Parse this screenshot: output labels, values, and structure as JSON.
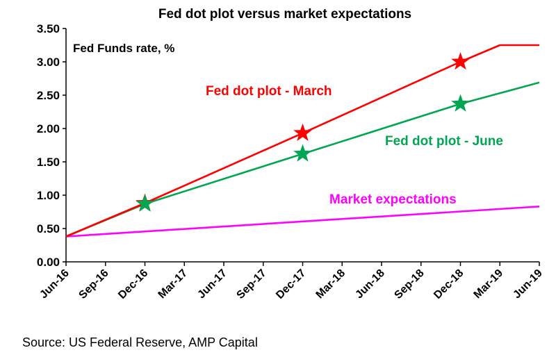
{
  "chart_data": {
    "type": "line",
    "title": "Fed dot plot versus market expectations",
    "ylabel": "Fed Funds rate, %",
    "ylim": [
      0,
      3.5
    ],
    "yticks": [
      0,
      0.5,
      1.0,
      1.5,
      2.0,
      2.5,
      3.0,
      3.5
    ],
    "ytick_labels": [
      "0.00",
      "0.50",
      "1.00",
      "1.50",
      "2.00",
      "2.50",
      "3.00",
      "3.50"
    ],
    "xticks": [
      "Jun-16",
      "Sep-16",
      "Dec-16",
      "Mar-17",
      "Jun-17",
      "Sep-17",
      "Dec-17",
      "Mar-18",
      "Jun-18",
      "Sep-18",
      "Dec-18",
      "Mar-19",
      "Jun-19"
    ],
    "grid": false,
    "series": [
      {
        "name": "Fed dot plot - March",
        "color": "#ff0000",
        "label_color": "#ff0000",
        "points": [
          [
            "Jun-16",
            0.38
          ],
          [
            "Dec-16",
            0.88
          ],
          [
            "Dec-17",
            1.93
          ],
          [
            "Dec-18",
            3.0
          ],
          [
            "Mar-19",
            3.25
          ],
          [
            "Jun-19",
            3.25
          ]
        ],
        "markers": [
          [
            "Dec-16",
            0.88
          ],
          [
            "Dec-17",
            1.93
          ],
          [
            "Dec-18",
            3.0
          ]
        ]
      },
      {
        "name": "Fed dot plot - June",
        "color": "#00a651",
        "label_color": "#00a651",
        "points": [
          [
            "Jun-16",
            0.38
          ],
          [
            "Dec-16",
            0.87
          ],
          [
            "Dec-17",
            1.62
          ],
          [
            "Dec-18",
            2.37
          ],
          [
            "Jun-19",
            2.69
          ]
        ],
        "markers": [
          [
            "Dec-16",
            0.87
          ],
          [
            "Dec-17",
            1.62
          ],
          [
            "Dec-18",
            2.37
          ]
        ]
      },
      {
        "name": "Market expectations",
        "color": "#ff00ff",
        "label_color": "#ff00ff",
        "points": [
          [
            "Jun-16",
            0.38
          ],
          [
            "Jun-19",
            0.83
          ]
        ],
        "markers": []
      }
    ]
  },
  "source": "Source: US Federal Reserve, AMP Capital"
}
